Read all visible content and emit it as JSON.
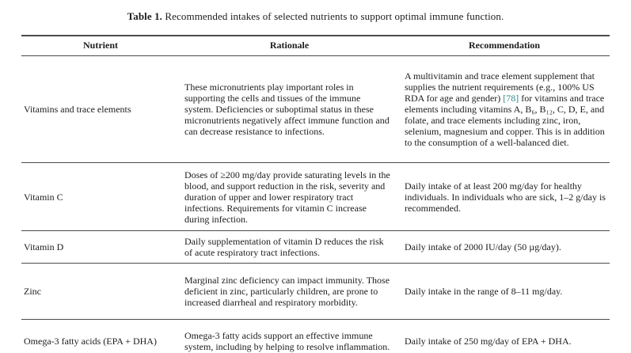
{
  "title": {
    "label": "Table 1.",
    "text": "Recommended intakes of selected nutrients to support optimal immune function."
  },
  "table": {
    "citation_color": "#2e8b8b",
    "headers": {
      "nutrient": "Nutrient",
      "rationale": "Rationale",
      "recommendation": "Recommendation"
    },
    "rows": [
      {
        "nutrient": "Vitamins and trace elements",
        "rationale": "These micronutrients play important roles in supporting the cells and tissues of the immune system. Deficiencies or suboptimal status in these micronutrients negatively affect immune function and can decrease resistance to infections.",
        "recommendation_pre": "A multivitamin and trace element supplement that supplies the nutrient requirements (e.g., 100% US RDA for age and gender) ",
        "citation": "[78]",
        "recommendation_post": " for vitamins and trace elements including vitamins A, B₆, B₁₂, C, D, E, and folate, and trace elements including zinc, iron, selenium, magnesium and copper. This is in addition to the consumption of a well-balanced diet."
      },
      {
        "nutrient": "Vitamin C",
        "rationale": "Doses of ≥200 mg/day provide saturating levels in the blood, and support reduction in the risk, severity and duration of upper and lower respiratory tract infections. Requirements for vitamin C increase during infection.",
        "recommendation": "Daily intake of at least 200 mg/day for healthy individuals. In individuals who are sick, 1–2 g/day is recommended."
      },
      {
        "nutrient": "Vitamin D",
        "rationale": "Daily supplementation of vitamin D reduces the risk of acute respiratory tract infections.",
        "recommendation": "Daily intake of 2000 IU/day (50 µg/day)."
      },
      {
        "nutrient": "Zinc",
        "rationale": "Marginal zinc deficiency can impact immunity. Those deficient in zinc, particularly children, are prone to increased diarrheal and respiratory morbidity.",
        "recommendation": "Daily intake in the range of 8–11 mg/day."
      },
      {
        "nutrient": "Omega-3 fatty acids (EPA + DHA)",
        "rationale": "Omega-3 fatty acids support an effective immune system, including by helping to resolve inflammation.",
        "recommendation": "Daily intake of 250 mg/day of EPA + DHA."
      }
    ]
  }
}
